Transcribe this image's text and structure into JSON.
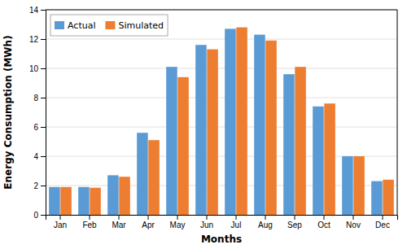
{
  "chart_data": {
    "type": "bar",
    "categories": [
      "Jan",
      "Feb",
      "Mar",
      "Apr",
      "May",
      "Jun",
      "Jul",
      "Aug",
      "Sep",
      "Oct",
      "Nov",
      "Dec"
    ],
    "series": [
      {
        "name": "Actual",
        "color": "#5B9BD5",
        "values": [
          1.9,
          1.9,
          2.7,
          5.6,
          10.1,
          11.6,
          12.7,
          12.3,
          9.6,
          7.4,
          4.0,
          2.3
        ]
      },
      {
        "name": "Simulated",
        "color": "#ED7D31",
        "values": [
          1.9,
          1.85,
          2.6,
          5.1,
          9.4,
          11.3,
          12.8,
          11.9,
          10.1,
          7.6,
          4.0,
          2.4
        ]
      }
    ],
    "xlabel": "Months",
    "ylabel": "Energy Consumption (MWh)",
    "ylim": [
      0,
      14
    ],
    "yticks": [
      0,
      2,
      4,
      6,
      8,
      10,
      12,
      14
    ],
    "grid": true,
    "legend": "upper left"
  }
}
